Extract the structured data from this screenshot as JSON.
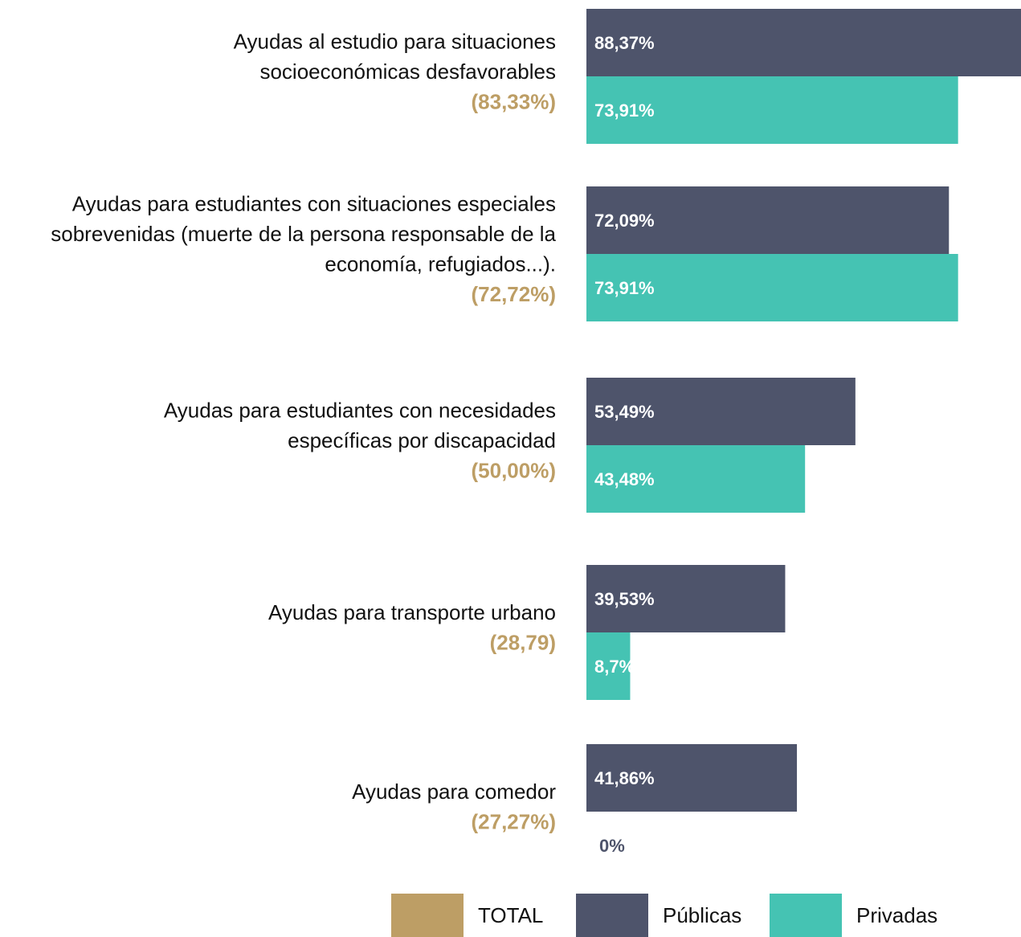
{
  "chart_data": {
    "type": "hbar",
    "categories": [
      [
        "Ayudas al estudio para situaciones",
        "socioeconómicas desfavorables"
      ],
      [
        "Ayudas para estudiantes con situaciones especiales",
        "sobrevenidas (muerte de la persona responsable de la",
        "economía, refugiados...)."
      ],
      [
        "Ayudas para estudiantes con necesidades",
        "específicas por discapacidad"
      ],
      [
        "Ayudas para transporte urbano"
      ],
      [
        "Ayudas para comedor"
      ]
    ],
    "series": [
      {
        "name": "TOTAL",
        "color": "#bd9e65",
        "values": [
          83.33,
          72.72,
          50.0,
          28.79,
          27.27
        ],
        "value_labels": [
          "(83,33%)",
          "(72,72%)",
          "(50,00%)",
          "(28,79)",
          "(27,27%)"
        ]
      },
      {
        "name": "Públicas",
        "color": "#4e546b",
        "values": [
          88.37,
          72.09,
          53.49,
          39.53,
          41.86
        ],
        "value_labels": [
          "88,37%",
          "72,09%",
          "53,49%",
          "39,53%",
          "41,86%"
        ]
      },
      {
        "name": "Privadas",
        "color": "#45c3b3",
        "values": [
          73.91,
          73.91,
          43.48,
          8.7,
          0
        ],
        "value_labels": [
          "73,91%",
          "73,91%",
          "43,48%",
          "8,7%",
          "0%"
        ]
      }
    ]
  }
}
